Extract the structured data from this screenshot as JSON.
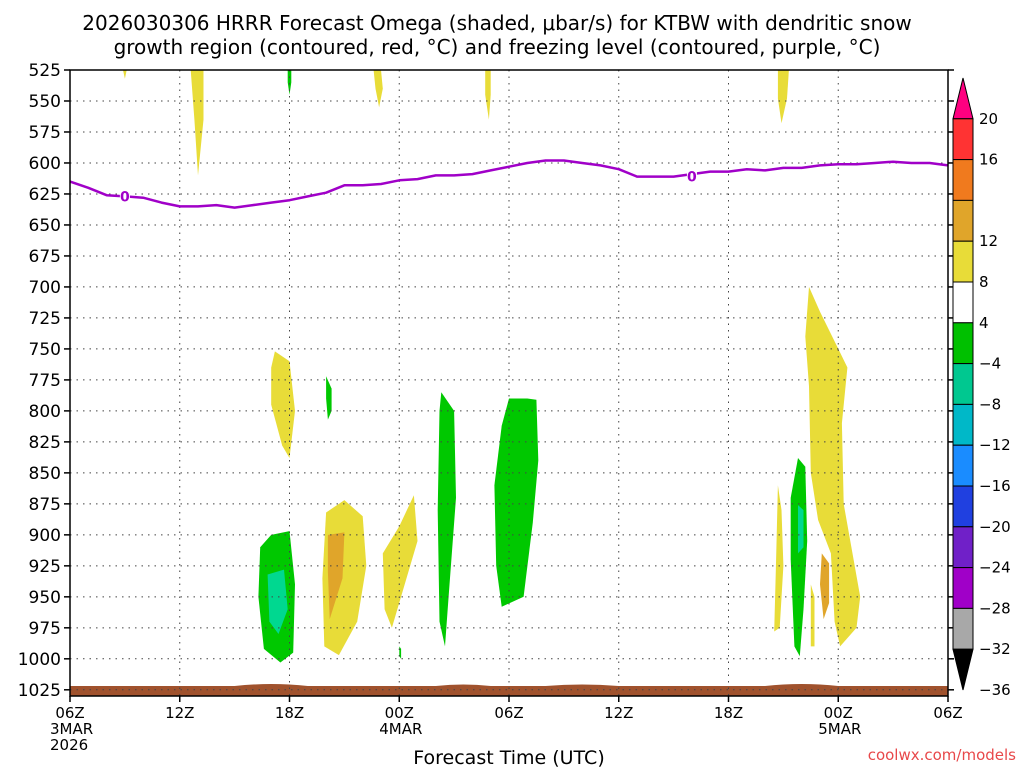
{
  "chart_data": {
    "type": "heatmap",
    "title_lines": [
      "2026030306 HRRR Forecast Omega (shaded, μbar/s) for KTBW with dendritic snow",
      "growth region (contoured, red, °C) and freezing level (contoured, purple, °C)"
    ],
    "xlabel": "Forecast Time (UTC)",
    "credit": "coolwx.com/models",
    "y_axis": {
      "reversed": true,
      "ylim": [
        525,
        1030
      ],
      "ticks": [
        525,
        550,
        575,
        600,
        625,
        650,
        675,
        700,
        725,
        750,
        775,
        800,
        825,
        850,
        875,
        900,
        925,
        950,
        975,
        1000,
        1025
      ]
    },
    "x_axis": {
      "xlim_hours": [
        0,
        48
      ],
      "ticks": [
        {
          "h": 0,
          "lines": [
            "06Z",
            "3MAR",
            "2026"
          ]
        },
        {
          "h": 6,
          "lines": [
            "12Z"
          ]
        },
        {
          "h": 12,
          "lines": [
            "18Z"
          ]
        },
        {
          "h": 18,
          "lines": [
            "00Z",
            "4MAR"
          ]
        },
        {
          "h": 24,
          "lines": [
            "06Z"
          ]
        },
        {
          "h": 30,
          "lines": [
            "12Z"
          ]
        },
        {
          "h": 36,
          "lines": [
            "18Z"
          ]
        },
        {
          "h": 42,
          "lines": [
            "00Z",
            "5MAR"
          ]
        },
        {
          "h": 48,
          "lines": [
            "06Z"
          ]
        }
      ]
    },
    "grid": true,
    "colorbar": {
      "placement": "right",
      "bins": [
        {
          "color": "#ff0080",
          "label": "20"
        },
        {
          "color": "#ff3333",
          "label": "16"
        },
        {
          "color": "#f07a1e",
          "label": ""
        },
        {
          "color": "#e0a52a",
          "label": "12"
        },
        {
          "color": "#e8dc38",
          "label": "8"
        },
        {
          "color": "#ffffff",
          "label": "4"
        },
        {
          "color": "#00c000",
          "label": "−4"
        },
        {
          "color": "#00c890",
          "label": "−8"
        },
        {
          "color": "#00b8c8",
          "label": "−12"
        },
        {
          "color": "#1a8cff",
          "label": "−16"
        },
        {
          "color": "#2040e0",
          "label": "−20"
        },
        {
          "color": "#7020c8",
          "label": "−24"
        },
        {
          "color": "#a000c8",
          "label": "−28"
        },
        {
          "color": "#a8a8a8",
          "label": "−32"
        },
        {
          "color": "#000000",
          "label": "−36"
        }
      ]
    },
    "colors": {
      "freezing_level": "#a000c8",
      "ground": "#a0522d",
      "yellow": "#e8dc38",
      "orange": "#e0a52a",
      "green": "#00c800",
      "teal": "#00d890"
    },
    "freezing_level": {
      "label": "0",
      "points": [
        [
          0,
          615
        ],
        [
          1,
          620
        ],
        [
          2,
          626
        ],
        [
          3,
          627
        ],
        [
          4,
          628
        ],
        [
          5,
          632
        ],
        [
          6,
          635
        ],
        [
          7,
          635
        ],
        [
          8,
          634
        ],
        [
          9,
          636
        ],
        [
          10,
          634
        ],
        [
          11,
          632
        ],
        [
          12,
          630
        ],
        [
          13,
          627
        ],
        [
          14,
          624
        ],
        [
          15,
          618
        ],
        [
          16,
          618
        ],
        [
          17,
          617
        ],
        [
          18,
          614
        ],
        [
          19,
          613
        ],
        [
          20,
          610
        ],
        [
          21,
          610
        ],
        [
          22,
          609
        ],
        [
          23,
          606
        ],
        [
          24,
          603
        ],
        [
          25,
          600
        ],
        [
          26,
          598
        ],
        [
          27,
          598
        ],
        [
          28,
          600
        ],
        [
          29,
          602
        ],
        [
          30,
          605
        ],
        [
          31,
          611
        ],
        [
          32,
          611
        ],
        [
          33,
          611
        ],
        [
          34,
          609
        ],
        [
          35,
          607
        ],
        [
          36,
          607
        ],
        [
          37,
          605
        ],
        [
          38,
          606
        ],
        [
          39,
          604
        ],
        [
          40,
          604
        ],
        [
          41,
          602
        ],
        [
          42,
          601
        ],
        [
          43,
          601
        ],
        [
          44,
          600
        ],
        [
          45,
          599
        ],
        [
          46,
          600
        ],
        [
          47,
          600
        ],
        [
          48,
          602
        ]
      ],
      "label_points": [
        [
          3,
          627
        ],
        [
          34,
          611
        ]
      ]
    },
    "omega_areas": [
      {
        "color": "yellow",
        "points": [
          [
            2.9,
            525
          ],
          [
            3.1,
            525
          ],
          [
            3.0,
            532
          ]
        ]
      },
      {
        "color": "yellow",
        "points": [
          [
            6.6,
            525
          ],
          [
            7.3,
            525
          ],
          [
            7.3,
            565
          ],
          [
            7.0,
            610
          ],
          [
            6.8,
            565
          ]
        ]
      },
      {
        "color": "green",
        "points": [
          [
            11.9,
            525
          ],
          [
            12.1,
            525
          ],
          [
            12.1,
            535
          ],
          [
            12.0,
            545
          ],
          [
            11.9,
            535
          ]
        ]
      },
      {
        "color": "yellow",
        "points": [
          [
            16.6,
            525
          ],
          [
            17.0,
            525
          ],
          [
            17.1,
            540
          ],
          [
            16.9,
            555
          ],
          [
            16.7,
            540
          ]
        ]
      },
      {
        "color": "yellow",
        "points": [
          [
            22.7,
            525
          ],
          [
            23.0,
            525
          ],
          [
            23.0,
            545
          ],
          [
            22.9,
            565
          ],
          [
            22.7,
            545
          ]
        ]
      },
      {
        "color": "yellow",
        "points": [
          [
            38.7,
            525
          ],
          [
            39.3,
            525
          ],
          [
            39.2,
            548
          ],
          [
            38.9,
            568
          ],
          [
            38.7,
            548
          ]
        ]
      },
      {
        "color": "yellow",
        "points": [
          [
            11.2,
            752
          ],
          [
            12.0,
            760
          ],
          [
            12.3,
            800
          ],
          [
            12.0,
            838
          ],
          [
            11.6,
            828
          ],
          [
            11.0,
            795
          ],
          [
            11.0,
            765
          ]
        ]
      },
      {
        "color": "green",
        "points": [
          [
            14.0,
            772
          ],
          [
            14.3,
            782
          ],
          [
            14.3,
            800
          ],
          [
            14.1,
            807
          ],
          [
            14.0,
            790
          ]
        ]
      },
      {
        "color": "yellow",
        "points": [
          [
            14.0,
            882
          ],
          [
            15.0,
            872
          ],
          [
            16.0,
            885
          ],
          [
            16.2,
            925
          ],
          [
            15.7,
            970
          ],
          [
            14.7,
            997
          ],
          [
            13.9,
            990
          ],
          [
            13.8,
            935
          ]
        ]
      },
      {
        "color": "orange",
        "points": [
          [
            14.1,
            900
          ],
          [
            15.0,
            898
          ],
          [
            14.9,
            935
          ],
          [
            14.2,
            968
          ],
          [
            14.1,
            930
          ]
        ]
      },
      {
        "color": "yellow",
        "points": [
          [
            17.1,
            915
          ],
          [
            18.0,
            893
          ],
          [
            18.8,
            868
          ],
          [
            19.0,
            905
          ],
          [
            18.3,
            940
          ],
          [
            17.6,
            975
          ],
          [
            17.2,
            960
          ]
        ]
      },
      {
        "color": "green",
        "points": [
          [
            18.0,
            990
          ],
          [
            18.1,
            992
          ],
          [
            18.1,
            1000
          ],
          [
            18.0,
            998
          ]
        ]
      },
      {
        "color": "green",
        "points": [
          [
            10.4,
            910
          ],
          [
            11.0,
            900
          ],
          [
            12.0,
            897
          ],
          [
            12.3,
            940
          ],
          [
            12.2,
            995
          ],
          [
            11.5,
            1003
          ],
          [
            10.6,
            992
          ],
          [
            10.3,
            950
          ]
        ]
      },
      {
        "color": "teal",
        "points": [
          [
            10.8,
            932
          ],
          [
            11.7,
            928
          ],
          [
            11.9,
            960
          ],
          [
            11.4,
            980
          ],
          [
            10.9,
            970
          ]
        ]
      },
      {
        "color": "green",
        "points": [
          [
            25.0,
            790
          ],
          [
            25.5,
            791
          ],
          [
            25.6,
            840
          ],
          [
            25.3,
            890
          ],
          [
            24.8,
            950
          ],
          [
            23.6,
            958
          ],
          [
            23.3,
            925
          ],
          [
            23.2,
            860
          ],
          [
            23.6,
            812
          ],
          [
            24.0,
            790
          ]
        ]
      },
      {
        "color": "green",
        "points": [
          [
            20.3,
            785
          ],
          [
            21.0,
            800
          ],
          [
            21.1,
            870
          ],
          [
            20.7,
            950
          ],
          [
            20.5,
            990
          ],
          [
            20.2,
            970
          ],
          [
            20.1,
            880
          ],
          [
            20.2,
            800
          ]
        ]
      },
      {
        "color": "yellow",
        "points": [
          [
            40.4,
            700
          ],
          [
            41.0,
            720
          ],
          [
            42.0,
            750
          ],
          [
            42.5,
            765
          ],
          [
            42.2,
            810
          ],
          [
            42.3,
            875
          ],
          [
            42.6,
            900
          ],
          [
            43.2,
            950
          ],
          [
            43.0,
            975
          ],
          [
            42.1,
            990
          ],
          [
            41.8,
            970
          ],
          [
            41.6,
            915
          ],
          [
            40.9,
            888
          ],
          [
            40.5,
            850
          ],
          [
            40.4,
            780
          ],
          [
            40.2,
            740
          ]
        ]
      },
      {
        "color": "orange",
        "points": [
          [
            41.1,
            915
          ],
          [
            41.5,
            923
          ],
          [
            41.5,
            955
          ],
          [
            41.2,
            968
          ],
          [
            41.0,
            940
          ]
        ]
      },
      {
        "color": "yellow",
        "points": [
          [
            38.7,
            860
          ],
          [
            38.9,
            880
          ],
          [
            39.0,
            925
          ],
          [
            38.8,
            975
          ],
          [
            38.5,
            978
          ],
          [
            38.6,
            920
          ]
        ]
      },
      {
        "color": "yellow",
        "points": [
          [
            40.5,
            940
          ],
          [
            40.7,
            950
          ],
          [
            40.7,
            990
          ],
          [
            40.5,
            990
          ]
        ]
      },
      {
        "color": "green",
        "points": [
          [
            39.8,
            838
          ],
          [
            40.2,
            845
          ],
          [
            40.3,
            905
          ],
          [
            40.1,
            960
          ],
          [
            39.9,
            998
          ],
          [
            39.6,
            990
          ],
          [
            39.4,
            920
          ],
          [
            39.4,
            870
          ]
        ]
      },
      {
        "color": "teal",
        "points": [
          [
            39.8,
            876
          ],
          [
            40.1,
            880
          ],
          [
            40.1,
            910
          ],
          [
            39.8,
            915
          ]
        ]
      }
    ]
  }
}
